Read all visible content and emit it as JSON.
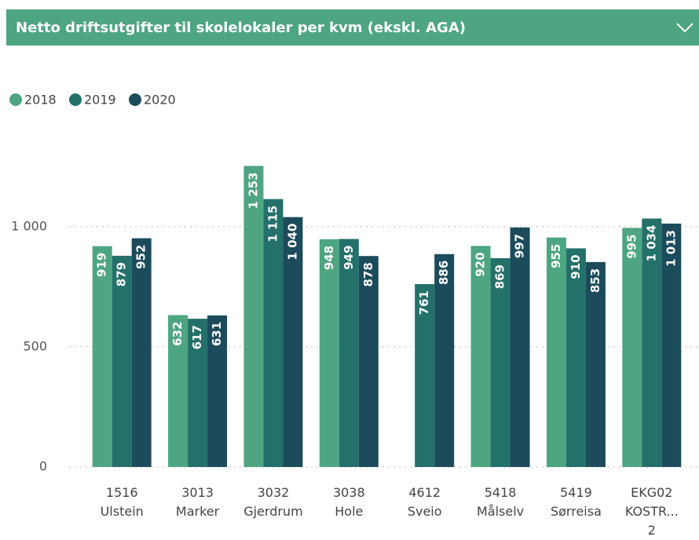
{
  "chart_data": {
    "type": "bar",
    "title": "Netto driftsutgifter til skolelokaler per kvm (ekskl. AGA)",
    "categories": [
      "1516 Ulstein",
      "3013 Marker",
      "3032 Gjerdrum",
      "3038 Hole",
      "4612 Sveio",
      "5418 Målselv",
      "5419 Sørreisa",
      "EKG02 KOSTR... 2"
    ],
    "series": [
      {
        "name": "2018",
        "color": "#4ea582",
        "values": [
          919,
          632,
          1253,
          948,
          null,
          920,
          955,
          995
        ],
        "value_labels": [
          "919",
          "632",
          "1 253",
          "948",
          null,
          "920",
          "955",
          "995"
        ]
      },
      {
        "name": "2019",
        "color": "#24706a",
        "values": [
          879,
          617,
          1115,
          949,
          761,
          869,
          910,
          1034
        ],
        "value_labels": [
          "879",
          "617",
          "1 115",
          "949",
          "761",
          "869",
          "910",
          "1 034"
        ]
      },
      {
        "name": "2020",
        "color": "#1c4b5b",
        "values": [
          952,
          631,
          1040,
          878,
          886,
          997,
          853,
          1013
        ],
        "value_labels": [
          "952",
          "631",
          "1 040",
          "878",
          "886",
          "997",
          "853",
          "1 013"
        ]
      }
    ],
    "ylim": [
      0,
      1300
    ],
    "yticks": [
      0,
      500,
      {
        "value": 1000,
        "label": "1 000"
      }
    ],
    "grid": true,
    "legend": "top-left"
  }
}
